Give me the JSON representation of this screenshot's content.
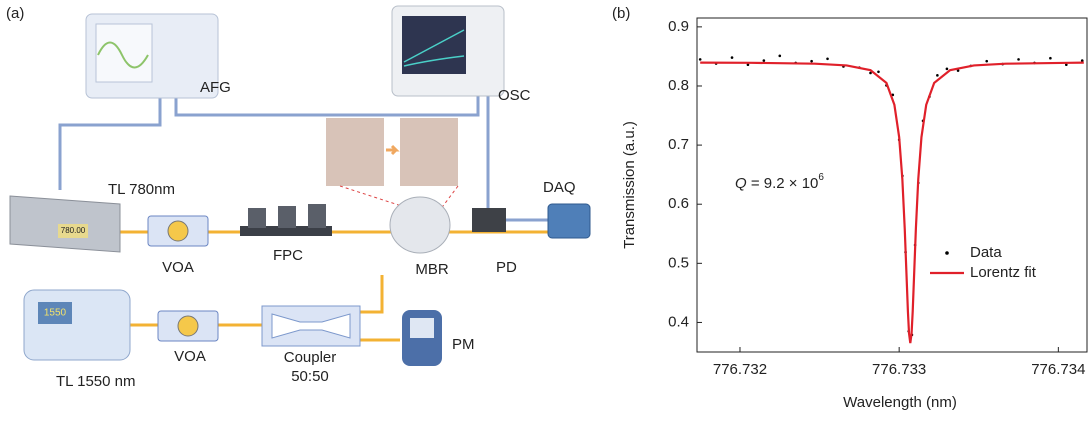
{
  "diagram": {
    "panel_label": "(a)",
    "labels": {
      "afg": "AFG",
      "osc": "OSC",
      "tl780": "TL 780nm",
      "tl780_display": "780.00",
      "voa1": "VOA",
      "fpc": "FPC",
      "mbr": "MBR",
      "pd": "PD",
      "daq": "DAQ",
      "voa2": "VOA",
      "coupler": "Coupler",
      "coupler_ratio": "50:50",
      "tl1550": "TL 1550 nm",
      "tl1550_display": "1550",
      "pm": "PM"
    }
  },
  "chart_data": {
    "type": "scatter",
    "panel_label": "(b)",
    "x_label": "Wavelength (nm)",
    "y_label": "Transmission (a.u.)",
    "annotation": {
      "symbol": "Q",
      "text": " = 9.2 × 10",
      "exponent": "6"
    },
    "xlim": [
      776.73173,
      776.73418
    ],
    "xticks": [
      776.732,
      776.733,
      776.734
    ],
    "ylim": [
      0.35,
      0.915
    ],
    "yticks": [
      0.4,
      0.5,
      0.6,
      0.7,
      0.8,
      0.9
    ],
    "grid": false,
    "legend": "lower right",
    "series": [
      {
        "name": "Data",
        "color": "#000000",
        "style": "dots",
        "x": [
          776.73175,
          776.73185,
          776.73195,
          776.73205,
          776.73215,
          776.73225,
          776.73235,
          776.73245,
          776.73255,
          776.73265,
          776.73275,
          776.73282,
          776.73287,
          776.73292,
          776.73296,
          776.733,
          776.73302,
          776.73304,
          776.73306,
          776.73308,
          776.7331,
          776.73312,
          776.73315,
          776.73319,
          776.73324,
          776.7333,
          776.73337,
          776.73345,
          776.73355,
          776.73365,
          776.73375,
          776.73385,
          776.73395,
          776.73405,
          776.73415
        ],
        "values": [
          0.845,
          0.838,
          0.848,
          0.836,
          0.843,
          0.851,
          0.839,
          0.842,
          0.846,
          0.833,
          0.831,
          0.822,
          0.824,
          0.801,
          0.785,
          0.709,
          0.648,
          0.519,
          0.385,
          0.379,
          0.531,
          0.636,
          0.741,
          0.782,
          0.818,
          0.829,
          0.826,
          0.834,
          0.842,
          0.837,
          0.845,
          0.839,
          0.847,
          0.836,
          0.843
        ]
      },
      {
        "name": "Lorentz fit",
        "color": "#e0202a",
        "style": "line",
        "x": [
          776.73175,
          776.73207,
          776.73247,
          776.73267,
          776.73282,
          776.73292,
          776.73297,
          776.733,
          776.73302,
          776.733035,
          776.733045,
          776.733055,
          776.733062,
          776.73307,
          776.733078,
          776.733085,
          776.733095,
          776.733105,
          776.73312,
          776.73314,
          776.73317,
          776.73322,
          776.73332,
          776.73347,
          776.73367,
          776.73407,
          776.73416
        ],
        "values": [
          0.8395,
          0.8392,
          0.8377,
          0.8348,
          0.8268,
          0.8052,
          0.7682,
          0.7134,
          0.6424,
          0.5586,
          0.4884,
          0.4182,
          0.3815,
          0.365,
          0.3815,
          0.4182,
          0.4884,
          0.5586,
          0.6424,
          0.7134,
          0.7682,
          0.8052,
          0.8268,
          0.8348,
          0.8377,
          0.8392,
          0.8395
        ]
      }
    ]
  }
}
